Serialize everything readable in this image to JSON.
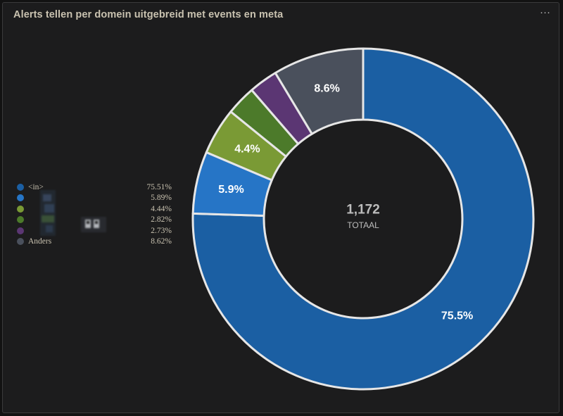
{
  "panel": {
    "title": "Alerts tellen per domein uitgebreid met events en meta",
    "menu_label": "···"
  },
  "chart_data": {
    "type": "pie",
    "variant": "donut",
    "title": "Alerts tellen per domein uitgebreid met events en meta",
    "total_value": "1,172",
    "total_label": "TOTAAL",
    "slices": [
      {
        "name": "<in>",
        "percent": 75.51,
        "legend_value": "75.51%",
        "slice_label": "75.5%",
        "color": "#1b5fa3"
      },
      {
        "name": "",
        "percent": 5.89,
        "legend_value": "5.89%",
        "slice_label": "5.9%",
        "color": "#2675c6"
      },
      {
        "name": "",
        "percent": 4.44,
        "legend_value": "4.44%",
        "slice_label": "4.4%",
        "color": "#7a9a35"
      },
      {
        "name": "",
        "percent": 2.82,
        "legend_value": "2.82%",
        "slice_label": "",
        "color": "#4c7a2a"
      },
      {
        "name": "",
        "percent": 2.73,
        "legend_value": "2.73%",
        "slice_label": "",
        "color": "#5b3673"
      },
      {
        "name": "Anders",
        "percent": 8.62,
        "legend_value": "8.62%",
        "slice_label": "8.6%",
        "color": "#4a505c"
      }
    ]
  }
}
